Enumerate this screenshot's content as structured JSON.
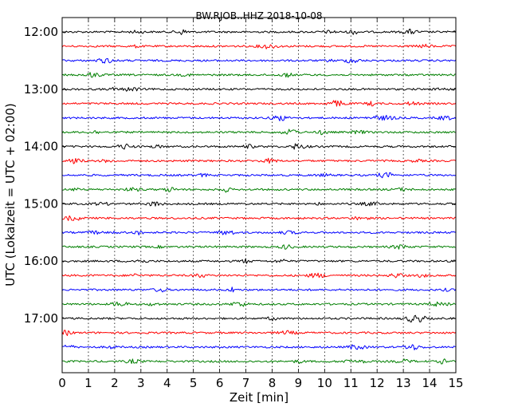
{
  "chart_data": {
    "type": "line",
    "title": "BW.RJOB..HHZ 2018-10-08",
    "xlabel": "Zeit  [min]",
    "ylabel": "UTC (Lokalzeit = UTC + 02:00)",
    "xlim": [
      0,
      15
    ],
    "x_ticks": [
      "0",
      "1",
      "2",
      "3",
      "4",
      "5",
      "6",
      "7",
      "8",
      "9",
      "10",
      "11",
      "12",
      "13",
      "14",
      "15"
    ],
    "y_tick_labels": [
      "12:00",
      "13:00",
      "14:00",
      "15:00",
      "16:00",
      "17:00"
    ],
    "y_tick_rows": [
      0,
      4,
      8,
      12,
      16,
      20
    ],
    "row_interval_min": 15,
    "grid": "vertical-dotted",
    "colors": [
      "#000000",
      "#ff0000",
      "#0000ff",
      "#007f00"
    ],
    "rows": [
      {
        "start": "12:00",
        "color": "#000000"
      },
      {
        "start": "12:15",
        "color": "#ff0000"
      },
      {
        "start": "12:30",
        "color": "#0000ff"
      },
      {
        "start": "12:45",
        "color": "#007f00"
      },
      {
        "start": "13:00",
        "color": "#000000"
      },
      {
        "start": "13:15",
        "color": "#ff0000"
      },
      {
        "start": "13:30",
        "color": "#0000ff"
      },
      {
        "start": "13:45",
        "color": "#007f00"
      },
      {
        "start": "14:00",
        "color": "#000000"
      },
      {
        "start": "14:15",
        "color": "#ff0000"
      },
      {
        "start": "14:30",
        "color": "#0000ff"
      },
      {
        "start": "14:45",
        "color": "#007f00"
      },
      {
        "start": "15:00",
        "color": "#000000"
      },
      {
        "start": "15:15",
        "color": "#ff0000"
      },
      {
        "start": "15:30",
        "color": "#0000ff"
      },
      {
        "start": "15:45",
        "color": "#007f00"
      },
      {
        "start": "16:00",
        "color": "#000000"
      },
      {
        "start": "16:15",
        "color": "#ff0000"
      },
      {
        "start": "16:30",
        "color": "#0000ff"
      },
      {
        "start": "16:45",
        "color": "#007f00"
      },
      {
        "start": "17:00",
        "color": "#000000"
      },
      {
        "start": "17:15",
        "color": "#ff0000"
      },
      {
        "start": "17:30",
        "color": "#0000ff"
      },
      {
        "start": "17:45",
        "color": "#007f00"
      }
    ]
  }
}
